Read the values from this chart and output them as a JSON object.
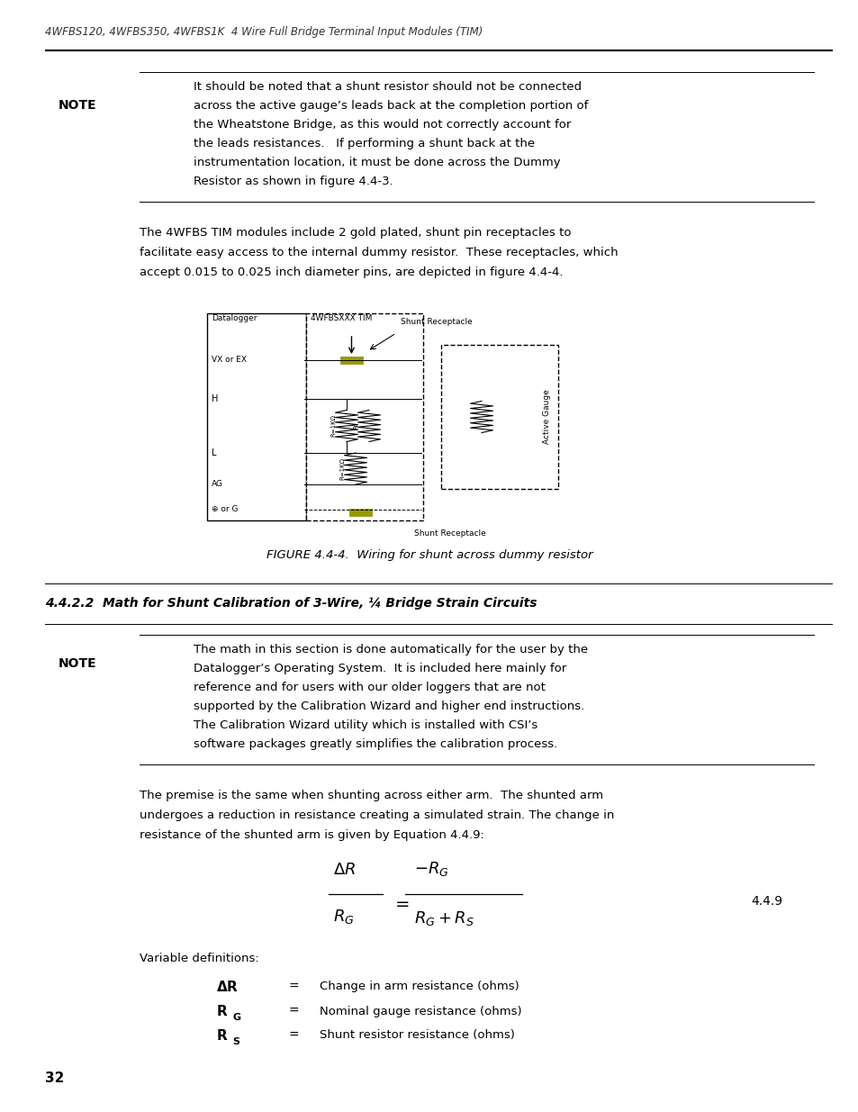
{
  "page_width": 9.54,
  "page_height": 12.35,
  "bg_color": "#ffffff",
  "header_text": "4WFBS120, 4WFBS350, 4WFBS1K  4 Wire Full Bridge Terminal Input Modules (TIM)",
  "header_fontsize": 8.5,
  "header_italic": true,
  "page_number": "32",
  "note_label": "NOTE",
  "note_text": "It should be noted that a shunt resistor should not be connected\nacross the active gauge’s leads back at the completion portion of\nthe Wheatstone Bridge, as this would not correctly account for\nthe leads resistances.   If performing a shunt back at the\ninstrumentation location, it must be done across the Dummy\nResistor as shown in figure 4.4-3.",
  "para1": "The 4WFBS TIM modules include 2 gold plated, shunt pin receptacles to\nfacilitate easy access to the internal dummy resistor.  These receptacles, which\naccept 0.015 to 0.025 inch diameter pins, are depicted in figure 4.4-4.",
  "figure_caption": "FIGURE 4.4-4.  Wiring for shunt across dummy resistor",
  "section_heading": "4.4.2.2  Math for Shunt Calibration of 3-Wire, ¼ Bridge Strain Circuits",
  "note2_label": "NOTE",
  "note2_text": "The math in this section is done automatically for the user by the\nDatalogger’s Operating System.  It is included here mainly for\nreference and for users with our older loggers that are not\nsupported by the Calibration Wizard and higher end instructions.\nThe Calibration Wizard utility which is installed with CSI’s\nsoftware packages greatly simplifies the calibration process.",
  "para2": "The premise is the same when shunting across either arm.  The shunted arm\nundergoes a reduction in resistance creating a simulated strain. The change in\nresistance of the shunted arm is given by Equation 4.4.9:",
  "eq_number": "4.4.9",
  "var_def_label": "Variable definitions:",
  "var1_sym": "ΔR",
  "var1_def": "Change in arm resistance (ohms)",
  "var2_sym": "R",
  "var2_sub": "G",
  "var2_def": "Nominal gauge resistance (ohms)",
  "var3_sym": "R",
  "var3_sub": "S",
  "var3_def": "Shunt resistor resistance (ohms)"
}
